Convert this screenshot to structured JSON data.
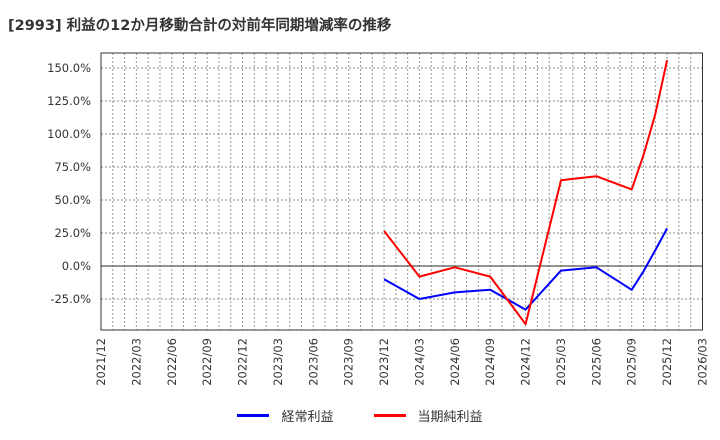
{
  "title": "[2993]  利益の12か月移動合計の対前年同期増減率の推移",
  "chart_data": {
    "type": "line",
    "title": "[2993]  利益の12か月移動合計の対前年同期増減率の推移",
    "xlabel": "",
    "ylabel": "",
    "ylim": [
      -48,
      162
    ],
    "grid": true,
    "legend_position": "bottom",
    "y_ticks": [
      "150.0%",
      "125.0%",
      "100.0%",
      "75.0%",
      "50.0%",
      "25.0%",
      "0.0%",
      "-25.0%"
    ],
    "y_tick_values": [
      150,
      125,
      100,
      75,
      50,
      25,
      0,
      -25
    ],
    "x_ticks": [
      "2021/12",
      "2022/03",
      "2022/06",
      "2022/09",
      "2022/12",
      "2023/03",
      "2023/06",
      "2023/09",
      "2023/12",
      "2024/03",
      "2024/06",
      "2024/09",
      "2024/12",
      "2025/03",
      "2025/06",
      "2025/09",
      "2025/12",
      "2026/03"
    ],
    "x": [
      "2023/12",
      "2024/03",
      "2024/06",
      "2024/09",
      "2024/12",
      "2025/03",
      "2025/06",
      "2025/09",
      "2025/10",
      "2025/11",
      "2025/12"
    ],
    "series": [
      {
        "name": "経常利益",
        "color": "#0000ff",
        "values": [
          -10,
          -25,
          -20,
          -18,
          -33,
          -3.5,
          -1,
          -18,
          -4,
          12,
          28.5
        ]
      },
      {
        "name": "当期純利益",
        "color": "#ff0000",
        "values": [
          26.5,
          -8,
          -1,
          -8,
          -44,
          65,
          68,
          58,
          84,
          115,
          156
        ]
      }
    ]
  },
  "legend": [
    {
      "label": "経常利益",
      "color": "#0000ff"
    },
    {
      "label": "当期純利益",
      "color": "#ff0000"
    }
  ]
}
